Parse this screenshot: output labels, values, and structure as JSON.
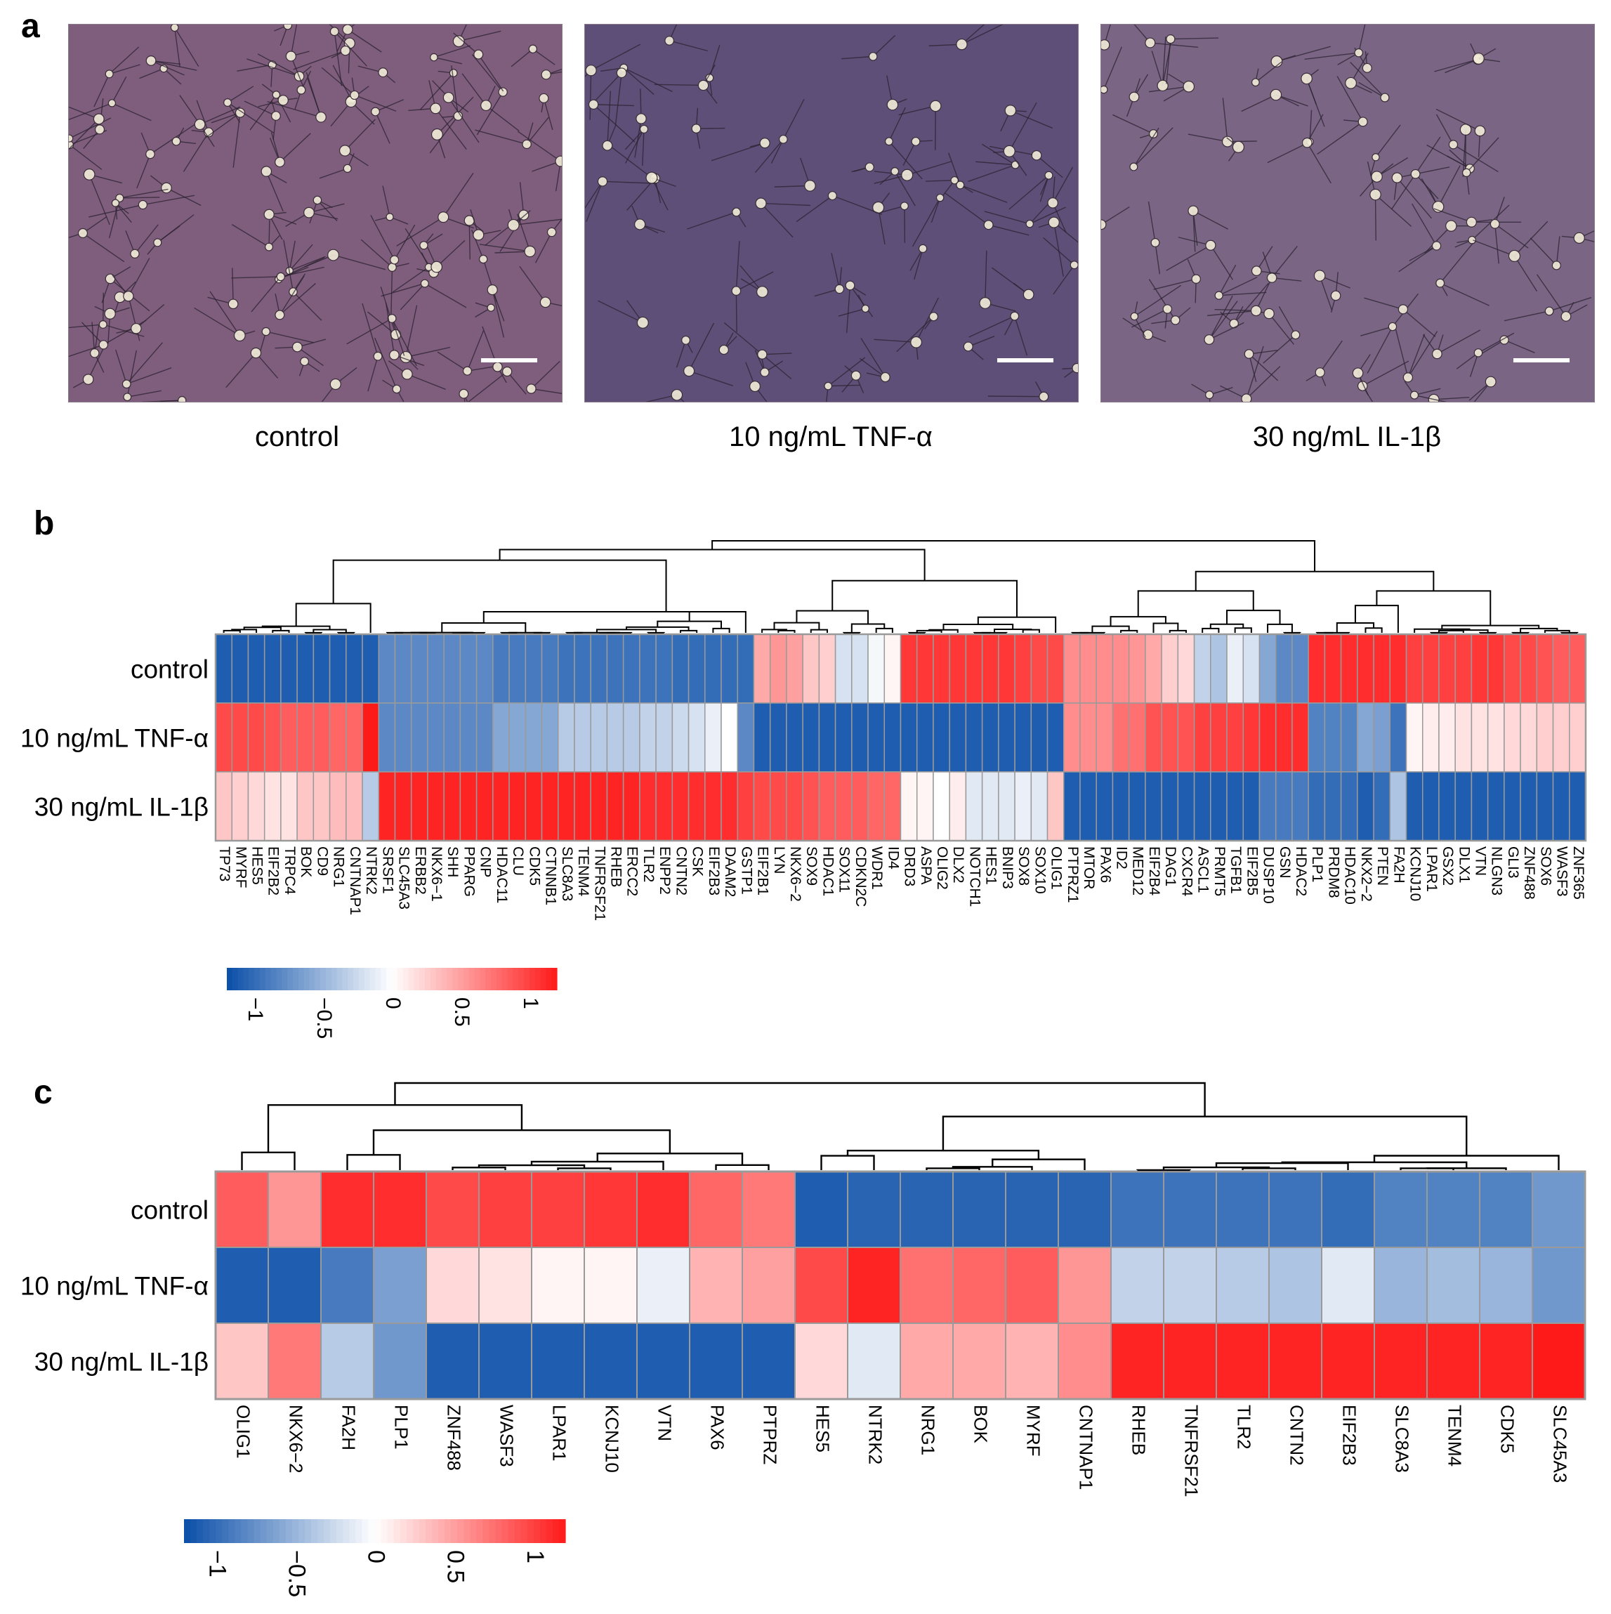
{
  "panels": {
    "a": {
      "letter": "a",
      "images": [
        {
          "label": "control",
          "tint": "#7f5e7d"
        },
        {
          "label": "10 ng/mL TNF-α",
          "tint": "#5e4f78"
        },
        {
          "label": "30 ng/mL IL-1β",
          "tint": "#7a6584"
        }
      ]
    },
    "b": {
      "letter": "b"
    },
    "c": {
      "letter": "c"
    }
  },
  "colors": {
    "low": "#0a4ea8",
    "mid": "#ffffff",
    "high": "#ff1a1a",
    "grid": "#9a9a9a",
    "dendrogram": "#000000"
  },
  "chart_data": [
    {
      "type": "heatmap",
      "panel": "b",
      "title": "",
      "rows": [
        "control",
        "10 ng/mL TNF-α",
        "30 ng/mL IL-1β"
      ],
      "columns": [
        "TP73",
        "MYRF",
        "HES5",
        "EIF2B2",
        "TRPC4",
        "BOK",
        "CD9",
        "NRG1",
        "CNTNAP1",
        "NTRK2",
        "SRSF1",
        "SLC45A3",
        "ERBB2",
        "NKX6−1",
        "SHH",
        "PPARG",
        "CNP",
        "HDAC11",
        "CLU",
        "CDK5",
        "CTNNB1",
        "SLC8A3",
        "TENM4",
        "TNFRSF21",
        "RHEB",
        "ERCC2",
        "TLR2",
        "ENPP2",
        "CNTN2",
        "CSK",
        "EIF2B3",
        "DAAM2",
        "GSTP1",
        "EIF2B1",
        "LYN",
        "NKX6−2",
        "SOX9",
        "HDAC1",
        "SOX11",
        "CDKN2C",
        "WDR1",
        "ID4",
        "DRD3",
        "ASPA",
        "OLIG2",
        "DLX2",
        "NOTCH1",
        "HES1",
        "BNIP3",
        "SOX8",
        "SOX10",
        "OLIG1",
        "PTPRZ1",
        "MTOR",
        "PAX6",
        "ID2",
        "MED12",
        "EIF2B4",
        "DAG1",
        "CXCR4",
        "ASCL1",
        "PRMT5",
        "TGFB1",
        "EIF2B5",
        "DUSP10",
        "GSN",
        "HDAC2",
        "PLP1",
        "PRDM8",
        "HDAC10",
        "NKX2−2",
        "PTEN",
        "FA2H",
        "KCNJ10",
        "LPAR1",
        "GSX2",
        "DLX1",
        "VTN",
        "NLGN3",
        "GLI3",
        "ZNF488",
        "SOX6",
        "WASF3",
        "ZNF365"
      ],
      "values": [
        [
          -1.1,
          -1.1,
          -1.1,
          -1.1,
          -1.1,
          -1.1,
          -1.1,
          -1.1,
          -1.1,
          -1.1,
          -0.8,
          -0.8,
          -0.8,
          -0.8,
          -0.8,
          -0.8,
          -0.8,
          -0.9,
          -0.9,
          -0.9,
          -0.9,
          -0.95,
          -0.95,
          -0.95,
          -0.95,
          -0.95,
          -0.95,
          -0.95,
          -1.0,
          -1.0,
          -1.0,
          -1.0,
          -1.0,
          0.45,
          0.55,
          0.5,
          0.3,
          0.25,
          -0.2,
          -0.2,
          -0.05,
          0.05,
          1.05,
          1.05,
          1.05,
          1.05,
          1.05,
          1.05,
          1.05,
          1.0,
          0.95,
          0.95,
          0.6,
          0.6,
          0.6,
          0.6,
          0.55,
          0.45,
          0.25,
          0.2,
          -0.3,
          -0.4,
          -0.1,
          -0.2,
          -0.6,
          -0.8,
          -0.8,
          1.1,
          1.1,
          1.1,
          1.1,
          1.1,
          1.1,
          1.0,
          1.0,
          1.0,
          1.0,
          1.05,
          1.05,
          0.95,
          0.95,
          0.9,
          0.85,
          0.85
        ],
        [
          0.95,
          0.95,
          0.95,
          0.9,
          0.85,
          0.85,
          0.85,
          0.8,
          0.8,
          1.2,
          -0.8,
          -0.8,
          -0.8,
          -0.8,
          -0.8,
          -0.8,
          -0.8,
          -0.6,
          -0.6,
          -0.6,
          -0.6,
          -0.35,
          -0.35,
          -0.35,
          -0.35,
          -0.35,
          -0.3,
          -0.3,
          -0.25,
          -0.2,
          -0.1,
          0.0,
          -0.8,
          -1.1,
          -1.1,
          -1.1,
          -1.1,
          -1.1,
          -1.1,
          -1.1,
          -1.1,
          -1.1,
          -1.1,
          -1.1,
          -1.1,
          -1.1,
          -1.1,
          -1.1,
          -1.1,
          -1.1,
          -1.1,
          -1.1,
          0.6,
          0.6,
          0.6,
          0.75,
          0.75,
          0.9,
          0.9,
          0.9,
          1.0,
          1.0,
          1.0,
          1.05,
          1.1,
          1.1,
          1.1,
          -0.85,
          -0.85,
          -0.85,
          -0.6,
          -0.65,
          -0.95,
          0.05,
          0.1,
          0.1,
          0.15,
          0.15,
          0.15,
          0.2,
          0.2,
          0.25,
          0.25,
          0.25
        ],
        [
          0.3,
          0.25,
          0.2,
          0.15,
          0.15,
          0.3,
          0.3,
          0.35,
          0.35,
          -0.35,
          1.15,
          1.15,
          1.15,
          1.15,
          1.15,
          1.15,
          1.15,
          1.15,
          1.15,
          1.15,
          1.15,
          1.15,
          1.15,
          1.15,
          1.15,
          1.15,
          1.1,
          1.1,
          1.1,
          1.1,
          1.1,
          1.1,
          1.0,
          0.95,
          0.95,
          0.95,
          0.9,
          0.85,
          0.85,
          0.85,
          0.8,
          0.8,
          0.05,
          0.05,
          0.0,
          0.1,
          -0.15,
          -0.15,
          -0.15,
          -0.1,
          -0.15,
          0.3,
          -1.1,
          -1.1,
          -1.1,
          -1.1,
          -1.1,
          -1.1,
          -1.1,
          -1.1,
          -1.1,
          -1.1,
          -1.1,
          -1.1,
          -0.9,
          -0.9,
          -0.9,
          -1.0,
          -1.0,
          -1.0,
          -1.1,
          -1.0,
          -0.4,
          -1.1,
          -1.1,
          -1.1,
          -1.1,
          -1.1,
          -1.1,
          -1.1,
          -1.1,
          -1.1,
          -1.1,
          -1.1
        ]
      ],
      "legend": {
        "ticks": [
          "−1",
          "−0.5",
          "0",
          "0.5",
          "1"
        ],
        "tick_values": [
          -1,
          -0.5,
          0,
          0.5,
          1
        ],
        "range": [
          -1.2,
          1.2
        ]
      }
    },
    {
      "type": "heatmap",
      "panel": "c",
      "title": "",
      "rows": [
        "control",
        "10 ng/mL TNF-α",
        "30 ng/mL IL-1β"
      ],
      "columns": [
        "OLIG1",
        "NKX6−2",
        "FA2H",
        "PLP1",
        "ZNF488",
        "WASF3",
        "LPAR1",
        "KCNJ10",
        "VTN",
        "PAX6",
        "PTPRZ",
        "HES5",
        "NTRK2",
        "NRG1",
        "BOK",
        "MYRF",
        "CNTNAP1",
        "RHEB",
        "TNFRSF21",
        "TLR2",
        "CNTN2",
        "EIF2B3",
        "SLC8A3",
        "TENM4",
        "CDK5",
        "SLC45A3"
      ],
      "values": [
        [
          0.85,
          0.55,
          1.1,
          1.1,
          0.95,
          1.0,
          1.0,
          1.05,
          1.1,
          0.8,
          0.7,
          -1.1,
          -1.05,
          -1.05,
          -1.05,
          -1.05,
          -1.05,
          -0.95,
          -0.95,
          -0.95,
          -0.95,
          -1.0,
          -0.85,
          -0.85,
          -0.85,
          -0.7
        ],
        [
          -1.1,
          -1.1,
          -0.9,
          -0.65,
          0.2,
          0.15,
          0.05,
          0.05,
          -0.1,
          0.4,
          0.5,
          0.95,
          1.15,
          0.75,
          0.8,
          0.85,
          0.55,
          -0.3,
          -0.3,
          -0.35,
          -0.4,
          -0.15,
          -0.5,
          -0.45,
          -0.5,
          -0.7
        ],
        [
          0.3,
          0.7,
          -0.35,
          -0.7,
          -1.1,
          -1.1,
          -1.1,
          -1.1,
          -1.1,
          -1.1,
          -1.1,
          0.2,
          -0.15,
          0.45,
          0.45,
          0.4,
          0.6,
          1.15,
          1.15,
          1.15,
          1.15,
          1.15,
          1.15,
          1.15,
          1.15,
          1.2
        ]
      ],
      "legend": {
        "ticks": [
          "−1",
          "−0.5",
          "0",
          "0.5",
          "1"
        ],
        "tick_values": [
          -1,
          -0.5,
          0,
          0.5,
          1
        ],
        "range": [
          -1.2,
          1.2
        ]
      }
    }
  ]
}
